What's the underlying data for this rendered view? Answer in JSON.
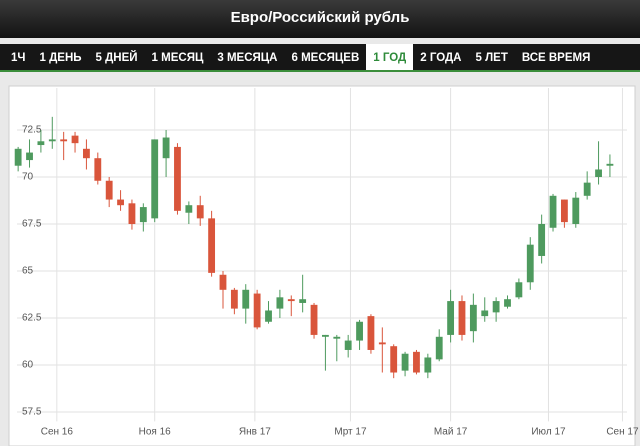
{
  "header": {
    "title": "Евро/Российский рубль"
  },
  "tabs": {
    "items": [
      "1Ч",
      "1 ДЕНЬ",
      "5 ДНЕЙ",
      "1 МЕСЯЦ",
      "3 МЕСЯЦА",
      "6 МЕСЯЦЕВ",
      "1 ГОД",
      "2 ГОДА",
      "5 ЛЕТ",
      "ВСЕ ВРЕМЯ"
    ],
    "active": 6
  },
  "chart_data": {
    "type": "candlestick",
    "up_color": "#4e9a5e",
    "down_color": "#d9553b",
    "grid": true,
    "open": [
      70.6,
      70.9,
      71.7,
      71.9,
      72.0,
      72.2,
      71.5,
      71.0,
      69.8,
      68.8,
      68.6,
      67.6,
      67.8,
      71.0,
      71.6,
      68.1,
      68.5,
      67.8,
      64.8,
      64.0,
      63.0,
      63.8,
      62.3,
      63.0,
      63.5,
      63.3,
      63.2,
      61.5,
      61.4,
      60.8,
      61.3,
      62.6,
      61.2,
      61.0,
      59.7,
      60.7,
      59.6,
      60.3,
      61.6,
      63.4,
      61.8,
      62.6,
      62.8,
      63.1,
      63.6,
      64.4,
      65.8,
      67.3,
      68.8,
      67.5,
      69.0,
      70.0,
      70.6
    ],
    "high": [
      71.6,
      72.0,
      72.5,
      73.2,
      72.4,
      72.4,
      72.0,
      71.3,
      70.0,
      69.3,
      68.8,
      68.6,
      72.0,
      72.5,
      71.8,
      68.7,
      69.0,
      68.2,
      65.0,
      64.1,
      64.3,
      64.0,
      63.4,
      64.0,
      63.7,
      64.8,
      63.3,
      61.6,
      61.6,
      61.6,
      62.4,
      62.7,
      62.0,
      61.1,
      60.7,
      60.8,
      60.6,
      61.9,
      64.0,
      63.7,
      63.8,
      63.6,
      63.6,
      63.7,
      64.6,
      66.8,
      68.0,
      69.1,
      68.8,
      69.2,
      70.3,
      71.9,
      71.2
    ],
    "low": [
      70.3,
      70.5,
      71.3,
      71.5,
      70.9,
      71.3,
      70.4,
      69.6,
      68.4,
      68.2,
      67.2,
      67.1,
      67.6,
      70.0,
      68.0,
      67.5,
      67.4,
      64.7,
      63.0,
      62.7,
      62.2,
      61.9,
      62.2,
      62.5,
      62.6,
      62.8,
      61.4,
      59.7,
      60.2,
      60.4,
      60.8,
      60.6,
      59.6,
      59.3,
      59.4,
      59.5,
      59.3,
      60.2,
      61.2,
      61.3,
      61.2,
      62.3,
      62.3,
      63.0,
      63.5,
      64.0,
      65.4,
      67.1,
      67.3,
      67.3,
      68.8,
      69.6,
      70.0
    ],
    "close": [
      71.5,
      71.3,
      71.9,
      72.0,
      71.9,
      71.8,
      71.0,
      69.8,
      68.8,
      68.5,
      67.5,
      68.4,
      72.0,
      72.1,
      68.2,
      68.5,
      67.8,
      64.9,
      64.0,
      63.0,
      64.0,
      62.0,
      62.9,
      63.6,
      63.4,
      63.5,
      61.6,
      61.6,
      61.5,
      61.3,
      62.3,
      60.8,
      61.1,
      59.6,
      60.6,
      59.6,
      60.4,
      61.5,
      63.4,
      61.6,
      63.2,
      62.9,
      63.4,
      63.5,
      64.4,
      66.4,
      67.5,
      69.0,
      67.6,
      68.9,
      69.7,
      70.4,
      70.7
    ],
    "xlim": [
      -0.1,
      53.5
    ],
    "xticks": [
      {
        "value": 3.4,
        "label": "Сен 16"
      },
      {
        "value": 12.0,
        "label": "Ноя 16"
      },
      {
        "value": 20.8,
        "label": "Янв 17"
      },
      {
        "value": 29.2,
        "label": "Мрт 17"
      },
      {
        "value": 38.0,
        "label": "Май 17"
      },
      {
        "value": 46.6,
        "label": "Июл 17"
      },
      {
        "value": 53.1,
        "label": "Сен 17"
      }
    ],
    "ylim": [
      57,
      74.5
    ],
    "yticks": [
      57.5,
      60,
      62.5,
      65,
      67.5,
      70,
      72.5
    ]
  }
}
